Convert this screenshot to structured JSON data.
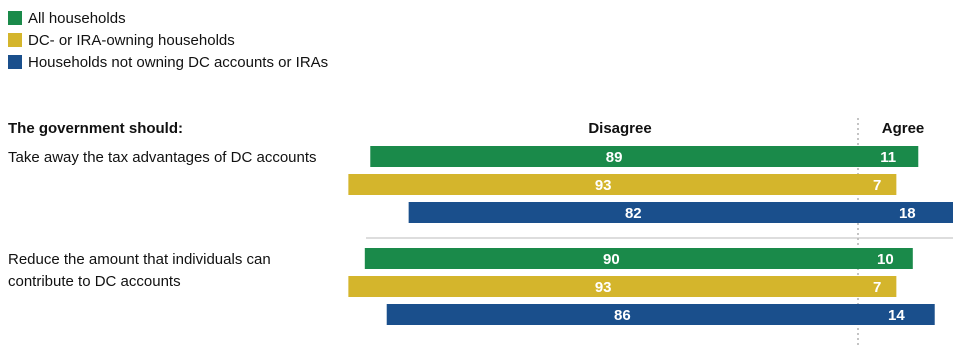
{
  "colors": {
    "all": "#1a8a4a",
    "owning": "#d4b52c",
    "not_owning": "#1a4f8c",
    "label": "#ffffff",
    "separator": "#bbbbbb",
    "divider": "#888888"
  },
  "chart_data": {
    "type": "bar",
    "orientation": "horizontal-diverging",
    "header_label": "The government should:",
    "disagree_label": "Disagree",
    "agree_label": "Agree",
    "legend_placement": "top-left",
    "series": [
      {
        "name": "All households",
        "color_key": "all"
      },
      {
        "name": "DC- or IRA-owning households",
        "color_key": "owning"
      },
      {
        "name": "Households not owning DC accounts or IRAs",
        "color_key": "not_owning"
      }
    ],
    "groups": [
      {
        "label_lines": [
          "Take away the tax advantages of DC accounts"
        ],
        "bars": [
          {
            "disagree": 89,
            "agree": 11
          },
          {
            "disagree": 93,
            "agree": 7
          },
          {
            "disagree": 82,
            "agree": 18
          }
        ]
      },
      {
        "label_lines": [
          "Reduce the amount that individuals can",
          "contribute to DC accounts"
        ],
        "bars": [
          {
            "disagree": 90,
            "agree": 10
          },
          {
            "disagree": 93,
            "agree": 7
          },
          {
            "disagree": 86,
            "agree": 14
          }
        ]
      }
    ]
  }
}
